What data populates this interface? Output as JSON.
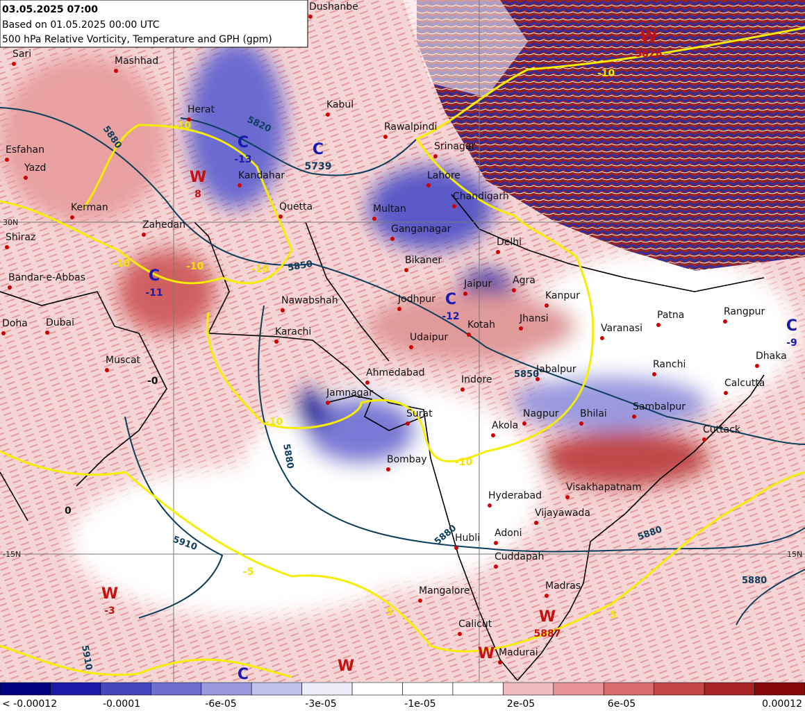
{
  "header": {
    "valid_time": "03.05.2025 07:00",
    "based_on": "Based on 01.05.2025 00:00 UTC",
    "product": "500 hPa Relative Vorticity, Temperature and GPH (gpm)"
  },
  "cities": [
    "Dushanbe",
    "Mashhad",
    "Sari",
    "Herat",
    "Kabul",
    "Esfahan",
    "Yazd",
    "Kandahar",
    "Rawalpindi",
    "Srinagar",
    "Lahore",
    "Chandigarh",
    "Kerman",
    "Zahedan",
    "Quetta",
    "Multan",
    "Ganganagar",
    "Shiraz",
    "Delhi",
    "Bikaner",
    "Bandar-e-Abbas",
    "Agra",
    "Jaipur",
    "Nawabshah",
    "Jodhpur",
    "Kanpur",
    "Jhansi",
    "Patna",
    "Doha",
    "Dubai",
    "Kotah",
    "Varanasi",
    "Rangpur",
    "Karachi",
    "Udaipur",
    "Dhaka",
    "Muscat",
    "Ranchi",
    "Ahmedabad",
    "Jabalpur",
    "Indore",
    "Calcutta",
    "Jamnagar",
    "Surat",
    "Sambalpur",
    "Nagpur",
    "Bhilai",
    "Akola",
    "Cuttack",
    "Bombay",
    "Hyderabad",
    "Visakhapatnam",
    "Vijayawada",
    "Hubli",
    "Adoni",
    "Cuddapah",
    "Madras",
    "Mangalore",
    "Calicut",
    "Madurai"
  ],
  "systems": [
    {
      "letter": "W",
      "value": "8"
    },
    {
      "letter": "C",
      "value": "-13"
    },
    {
      "letter": "C",
      "value": "5739"
    },
    {
      "letter": "C",
      "value": "-11"
    },
    {
      "letter": "C",
      "value": "-12"
    },
    {
      "letter": "W",
      "value": "5826"
    },
    {
      "letter": "W",
      "value": "-3"
    },
    {
      "letter": "C",
      "value": "-9"
    },
    {
      "letter": "W",
      "value": "5887"
    },
    {
      "letter": "C"
    },
    {
      "letter": "W"
    },
    {
      "letter": "W"
    }
  ],
  "gph_labels": [
    "5880",
    "5820",
    "5850",
    "5850",
    "5880",
    "5910",
    "5880",
    "5880",
    "5880",
    "5910"
  ],
  "temperature_labels": [
    "-10",
    "-10",
    "-10",
    "-10",
    "-10",
    "-10",
    "-10",
    "-5",
    "5",
    "5",
    "0",
    "-0"
  ],
  "grid_labels": [
    "30N",
    "-15N",
    "15N"
  ],
  "colorbar": {
    "colors": [
      "#000080",
      "#1a1aa6",
      "#4646bd",
      "#6e6ece",
      "#9898de",
      "#c2c2ee",
      "#eeeefa",
      "#ffffff",
      "#ffffff",
      "#ffffff",
      "#f2bcbc",
      "#e69494",
      "#d86c6c",
      "#c44848",
      "#a82424",
      "#860808"
    ],
    "labels": [
      "< -0.00012",
      "-0.0001",
      "-6e-05",
      "-3e-05",
      "-1e-05",
      "2e-05",
      "6e-05",
      "0.00012"
    ]
  }
}
